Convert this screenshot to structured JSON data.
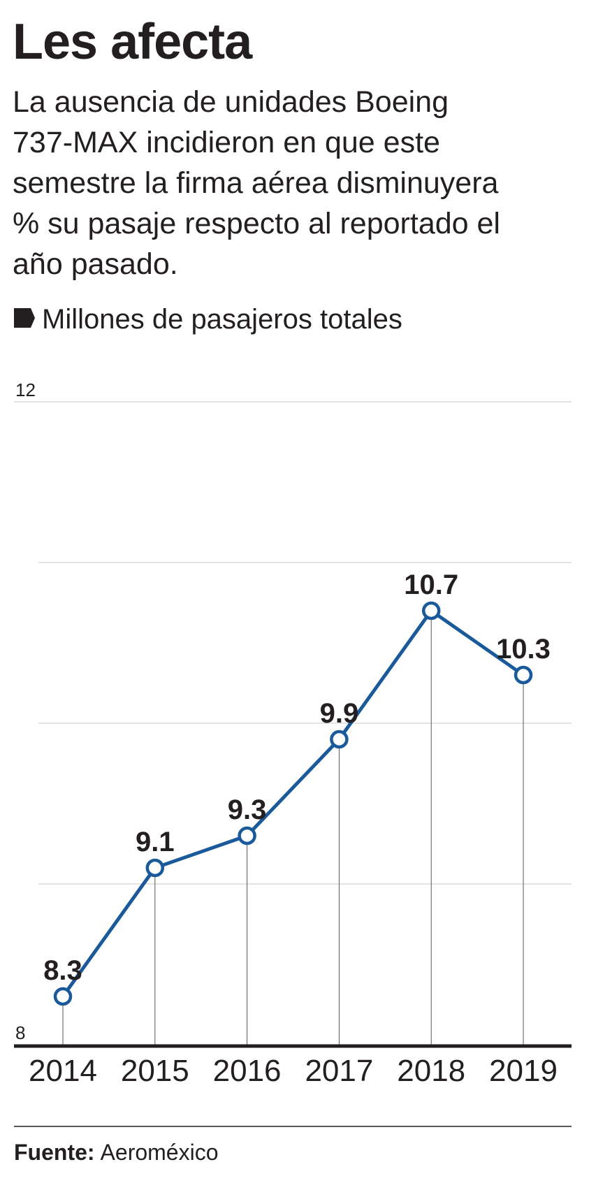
{
  "chart_data": {
    "type": "line",
    "title": "Les afecta",
    "subtitle": [
      "La ausencia de unidades Boeing",
      "737-MAX incidieron en que este",
      "semestre la firma aérea disminuyera",
      "% su pasaje respecto al reportado el",
      "año pasado."
    ],
    "y_label": "Millones de pasajeros totales",
    "categories": [
      "2014",
      "2015",
      "2016",
      "2017",
      "2018",
      "2019"
    ],
    "series": [
      {
        "name": "Millones de pasajeros totales",
        "color": "#1a5a9b",
        "values": [
          8.3,
          9.1,
          9.3,
          9.9,
          10.7,
          10.3
        ]
      }
    ],
    "ylim": [
      8,
      12
    ],
    "yticks": [
      8,
      12
    ],
    "gridlines": [
      9,
      10,
      11,
      12
    ],
    "source_label": "Fuente:",
    "source": "Aeroméxico"
  }
}
